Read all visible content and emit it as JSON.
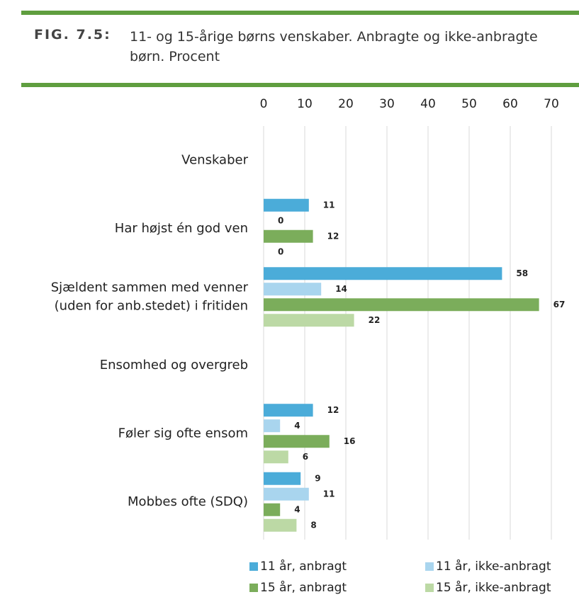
{
  "chart_data": {
    "type": "barh",
    "figure_label": "FIG. 7.5:",
    "title": "11- og 15-årige børns venskaber. Anbragte og ikke-anbragte børn. Procent",
    "categories": [
      "Venskaber",
      "Har højst én god ven",
      "Sjældent sammen med venner\n(uden for anb.stedet) i fritiden",
      "Ensomhed og overgreb",
      "Føler sig ofte ensom",
      "Mobbes ofte (SDQ)"
    ],
    "series": [
      {
        "name": "11 år, anbragt",
        "color": "#4bacd9",
        "values": [
          null,
          11,
          58,
          null,
          12,
          9
        ]
      },
      {
        "name": "11 år, ikke-anbragt",
        "color": "#a9d5ee",
        "values": [
          null,
          0,
          14,
          null,
          4,
          11
        ]
      },
      {
        "name": "15 år, anbragt",
        "color": "#7bad5b",
        "values": [
          null,
          12,
          67,
          null,
          16,
          4
        ]
      },
      {
        "name": "15 år, ikke-anbragt",
        "color": "#bcd9a5",
        "values": [
          null,
          0,
          22,
          null,
          6,
          8
        ]
      }
    ],
    "xlim": [
      0,
      70
    ],
    "xticks": [
      0,
      10,
      20,
      30,
      40,
      50,
      60,
      70
    ],
    "grid": true
  }
}
